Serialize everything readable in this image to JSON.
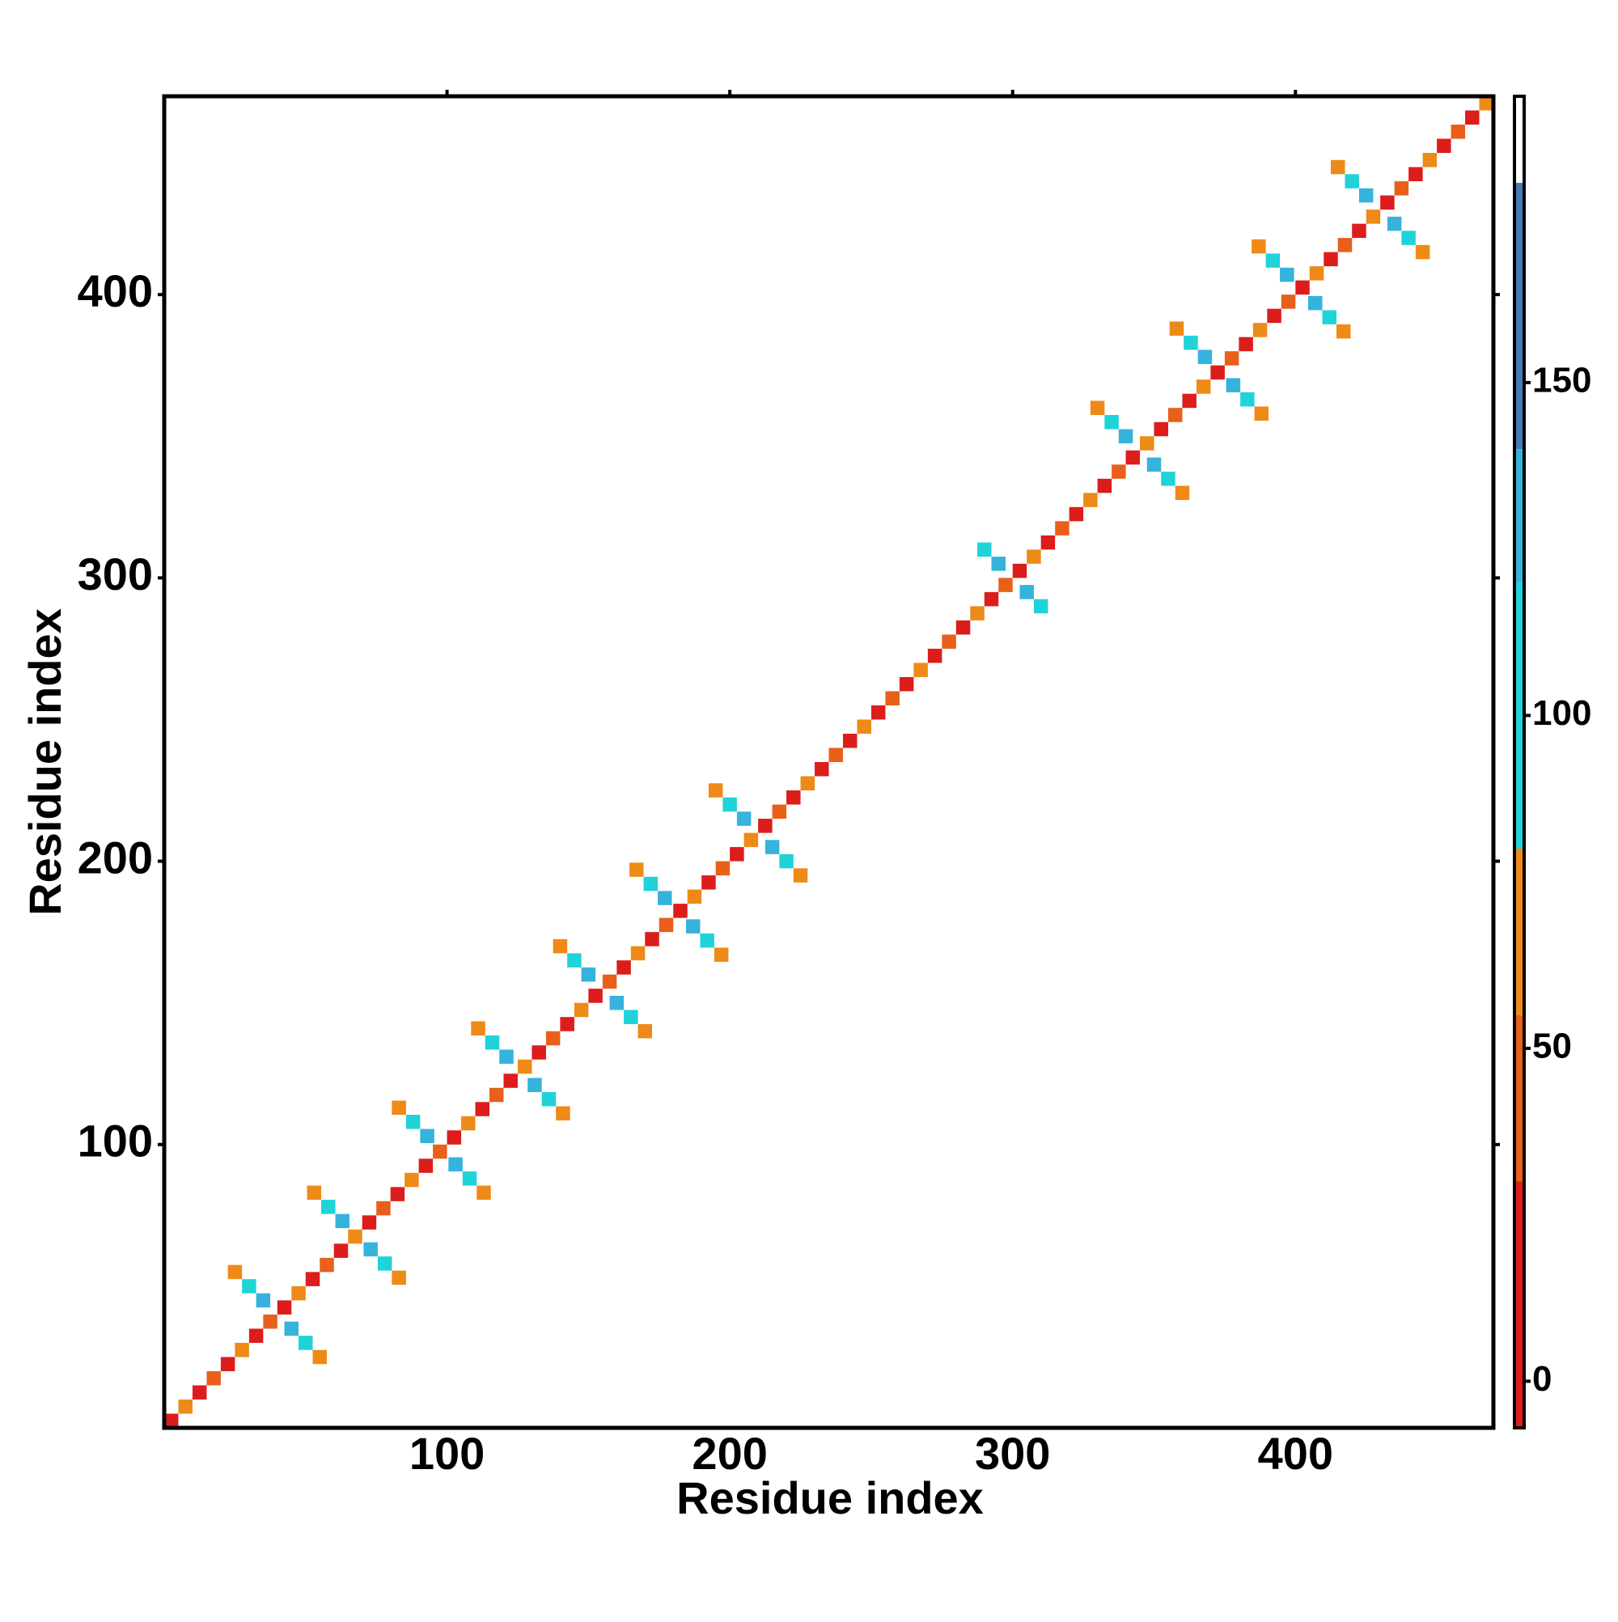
{
  "chart_data": {
    "type": "heatmap",
    "xlabel": "Residue index",
    "ylabel": "Residue index",
    "xlim": [
      0,
      470
    ],
    "ylim": [
      0,
      470
    ],
    "xticks": [
      100,
      200,
      300,
      400
    ],
    "yticks": [
      100,
      200,
      300,
      400
    ],
    "colorbar": {
      "lim": [
        -7,
        193
      ],
      "ticks": [
        0,
        50,
        100,
        150
      ],
      "bounds": [
        -7,
        30,
        55,
        80,
        120,
        140,
        180,
        193
      ],
      "colors": [
        "#dd1c1c",
        "#e8601a",
        "#ee8a17",
        "#1fd3d8",
        "#35b3dc",
        "#4a7ab4",
        "#ffffff"
      ]
    },
    "cells": [
      [
        2.5,
        2.5,
        10
      ],
      [
        7.5,
        7.5,
        60
      ],
      [
        12.5,
        12.5,
        10
      ],
      [
        17.5,
        17.5,
        40
      ],
      [
        22.5,
        22.5,
        10
      ],
      [
        27.5,
        27.5,
        60
      ],
      [
        32.5,
        32.5,
        10
      ],
      [
        37.5,
        37.5,
        40
      ],
      [
        42.5,
        42.5,
        10
      ],
      [
        47.5,
        47.5,
        60
      ],
      [
        52.5,
        52.5,
        10
      ],
      [
        57.5,
        57.5,
        40
      ],
      [
        62.5,
        62.5,
        10
      ],
      [
        67.5,
        67.5,
        60
      ],
      [
        72.5,
        72.5,
        10
      ],
      [
        77.5,
        77.5,
        40
      ],
      [
        82.5,
        82.5,
        10
      ],
      [
        87.5,
        87.5,
        60
      ],
      [
        92.5,
        92.5,
        10
      ],
      [
        97.5,
        97.5,
        40
      ],
      [
        102.5,
        102.5,
        10
      ],
      [
        107.5,
        107.5,
        60
      ],
      [
        112.5,
        112.5,
        10
      ],
      [
        117.5,
        117.5,
        40
      ],
      [
        122.5,
        122.5,
        10
      ],
      [
        127.5,
        127.5,
        60
      ],
      [
        132.5,
        132.5,
        10
      ],
      [
        137.5,
        137.5,
        40
      ],
      [
        142.5,
        142.5,
        10
      ],
      [
        147.5,
        147.5,
        60
      ],
      [
        152.5,
        152.5,
        10
      ],
      [
        157.5,
        157.5,
        40
      ],
      [
        162.5,
        162.5,
        10
      ],
      [
        167.5,
        167.5,
        60
      ],
      [
        172.5,
        172.5,
        10
      ],
      [
        177.5,
        177.5,
        40
      ],
      [
        182.5,
        182.5,
        10
      ],
      [
        187.5,
        187.5,
        60
      ],
      [
        192.5,
        192.5,
        10
      ],
      [
        197.5,
        197.5,
        40
      ],
      [
        202.5,
        202.5,
        10
      ],
      [
        207.5,
        207.5,
        60
      ],
      [
        212.5,
        212.5,
        10
      ],
      [
        217.5,
        217.5,
        40
      ],
      [
        222.5,
        222.5,
        10
      ],
      [
        227.5,
        227.5,
        60
      ],
      [
        232.5,
        232.5,
        10
      ],
      [
        237.5,
        237.5,
        40
      ],
      [
        242.5,
        242.5,
        10
      ],
      [
        247.5,
        247.5,
        60
      ],
      [
        252.5,
        252.5,
        10
      ],
      [
        257.5,
        257.5,
        40
      ],
      [
        262.5,
        262.5,
        10
      ],
      [
        267.5,
        267.5,
        60
      ],
      [
        272.5,
        272.5,
        10
      ],
      [
        277.5,
        277.5,
        40
      ],
      [
        282.5,
        282.5,
        10
      ],
      [
        287.5,
        287.5,
        60
      ],
      [
        292.5,
        292.5,
        10
      ],
      [
        297.5,
        297.5,
        40
      ],
      [
        302.5,
        302.5,
        10
      ],
      [
        307.5,
        307.5,
        60
      ],
      [
        312.5,
        312.5,
        10
      ],
      [
        317.5,
        317.5,
        40
      ],
      [
        322.5,
        322.5,
        10
      ],
      [
        327.5,
        327.5,
        60
      ],
      [
        332.5,
        332.5,
        10
      ],
      [
        337.5,
        337.5,
        40
      ],
      [
        342.5,
        342.5,
        10
      ],
      [
        347.5,
        347.5,
        60
      ],
      [
        352.5,
        352.5,
        10
      ],
      [
        357.5,
        357.5,
        40
      ],
      [
        362.5,
        362.5,
        10
      ],
      [
        367.5,
        367.5,
        60
      ],
      [
        372.5,
        372.5,
        10
      ],
      [
        377.5,
        377.5,
        40
      ],
      [
        382.5,
        382.5,
        10
      ],
      [
        387.5,
        387.5,
        60
      ],
      [
        392.5,
        392.5,
        10
      ],
      [
        397.5,
        397.5,
        40
      ],
      [
        402.5,
        402.5,
        10
      ],
      [
        407.5,
        407.5,
        60
      ],
      [
        412.5,
        412.5,
        10
      ],
      [
        417.5,
        417.5,
        40
      ],
      [
        422.5,
        422.5,
        10
      ],
      [
        427.5,
        427.5,
        60
      ],
      [
        432.5,
        432.5,
        10
      ],
      [
        437.5,
        437.5,
        40
      ],
      [
        442.5,
        442.5,
        10
      ],
      [
        447.5,
        447.5,
        60
      ],
      [
        452.5,
        452.5,
        10
      ],
      [
        457.5,
        457.5,
        40
      ],
      [
        462.5,
        462.5,
        10
      ],
      [
        467.5,
        467.5,
        60
      ],
      [
        35,
        45,
        130
      ],
      [
        45,
        35,
        130
      ],
      [
        30,
        50,
        100
      ],
      [
        50,
        30,
        100
      ],
      [
        25,
        55,
        55
      ],
      [
        55,
        25,
        55
      ],
      [
        63,
        73,
        130
      ],
      [
        73,
        63,
        130
      ],
      [
        58,
        78,
        100
      ],
      [
        78,
        58,
        100
      ],
      [
        53,
        83,
        55
      ],
      [
        83,
        53,
        55
      ],
      [
        93,
        103,
        130
      ],
      [
        103,
        93,
        130
      ],
      [
        88,
        108,
        100
      ],
      [
        108,
        88,
        100
      ],
      [
        83,
        113,
        55
      ],
      [
        113,
        83,
        55
      ],
      [
        121,
        131,
        130
      ],
      [
        131,
        121,
        130
      ],
      [
        116,
        136,
        100
      ],
      [
        136,
        116,
        100
      ],
      [
        111,
        141,
        55
      ],
      [
        141,
        111,
        55
      ],
      [
        150,
        160,
        130
      ],
      [
        160,
        150,
        130
      ],
      [
        145,
        165,
        100
      ],
      [
        165,
        145,
        100
      ],
      [
        140,
        170,
        55
      ],
      [
        170,
        140,
        55
      ],
      [
        177,
        187,
        130
      ],
      [
        187,
        177,
        130
      ],
      [
        172,
        192,
        100
      ],
      [
        192,
        172,
        100
      ],
      [
        167,
        197,
        55
      ],
      [
        197,
        167,
        55
      ],
      [
        205,
        215,
        130
      ],
      [
        215,
        205,
        130
      ],
      [
        200,
        220,
        100
      ],
      [
        220,
        200,
        100
      ],
      [
        195,
        225,
        55
      ],
      [
        225,
        195,
        55
      ],
      [
        295,
        305,
        130
      ],
      [
        305,
        295,
        130
      ],
      [
        290,
        310,
        100
      ],
      [
        310,
        290,
        100
      ],
      [
        340,
        350,
        130
      ],
      [
        350,
        340,
        130
      ],
      [
        335,
        355,
        100
      ],
      [
        355,
        335,
        100
      ],
      [
        330,
        360,
        55
      ],
      [
        360,
        330,
        55
      ],
      [
        368,
        378,
        130
      ],
      [
        378,
        368,
        130
      ],
      [
        363,
        383,
        100
      ],
      [
        383,
        363,
        100
      ],
      [
        358,
        388,
        55
      ],
      [
        388,
        358,
        55
      ],
      [
        397,
        407,
        130
      ],
      [
        407,
        397,
        130
      ],
      [
        392,
        412,
        100
      ],
      [
        412,
        392,
        100
      ],
      [
        387,
        417,
        55
      ],
      [
        417,
        387,
        55
      ],
      [
        425,
        435,
        130
      ],
      [
        435,
        425,
        130
      ],
      [
        420,
        440,
        100
      ],
      [
        440,
        420,
        100
      ],
      [
        415,
        445,
        55
      ],
      [
        445,
        415,
        55
      ]
    ]
  }
}
